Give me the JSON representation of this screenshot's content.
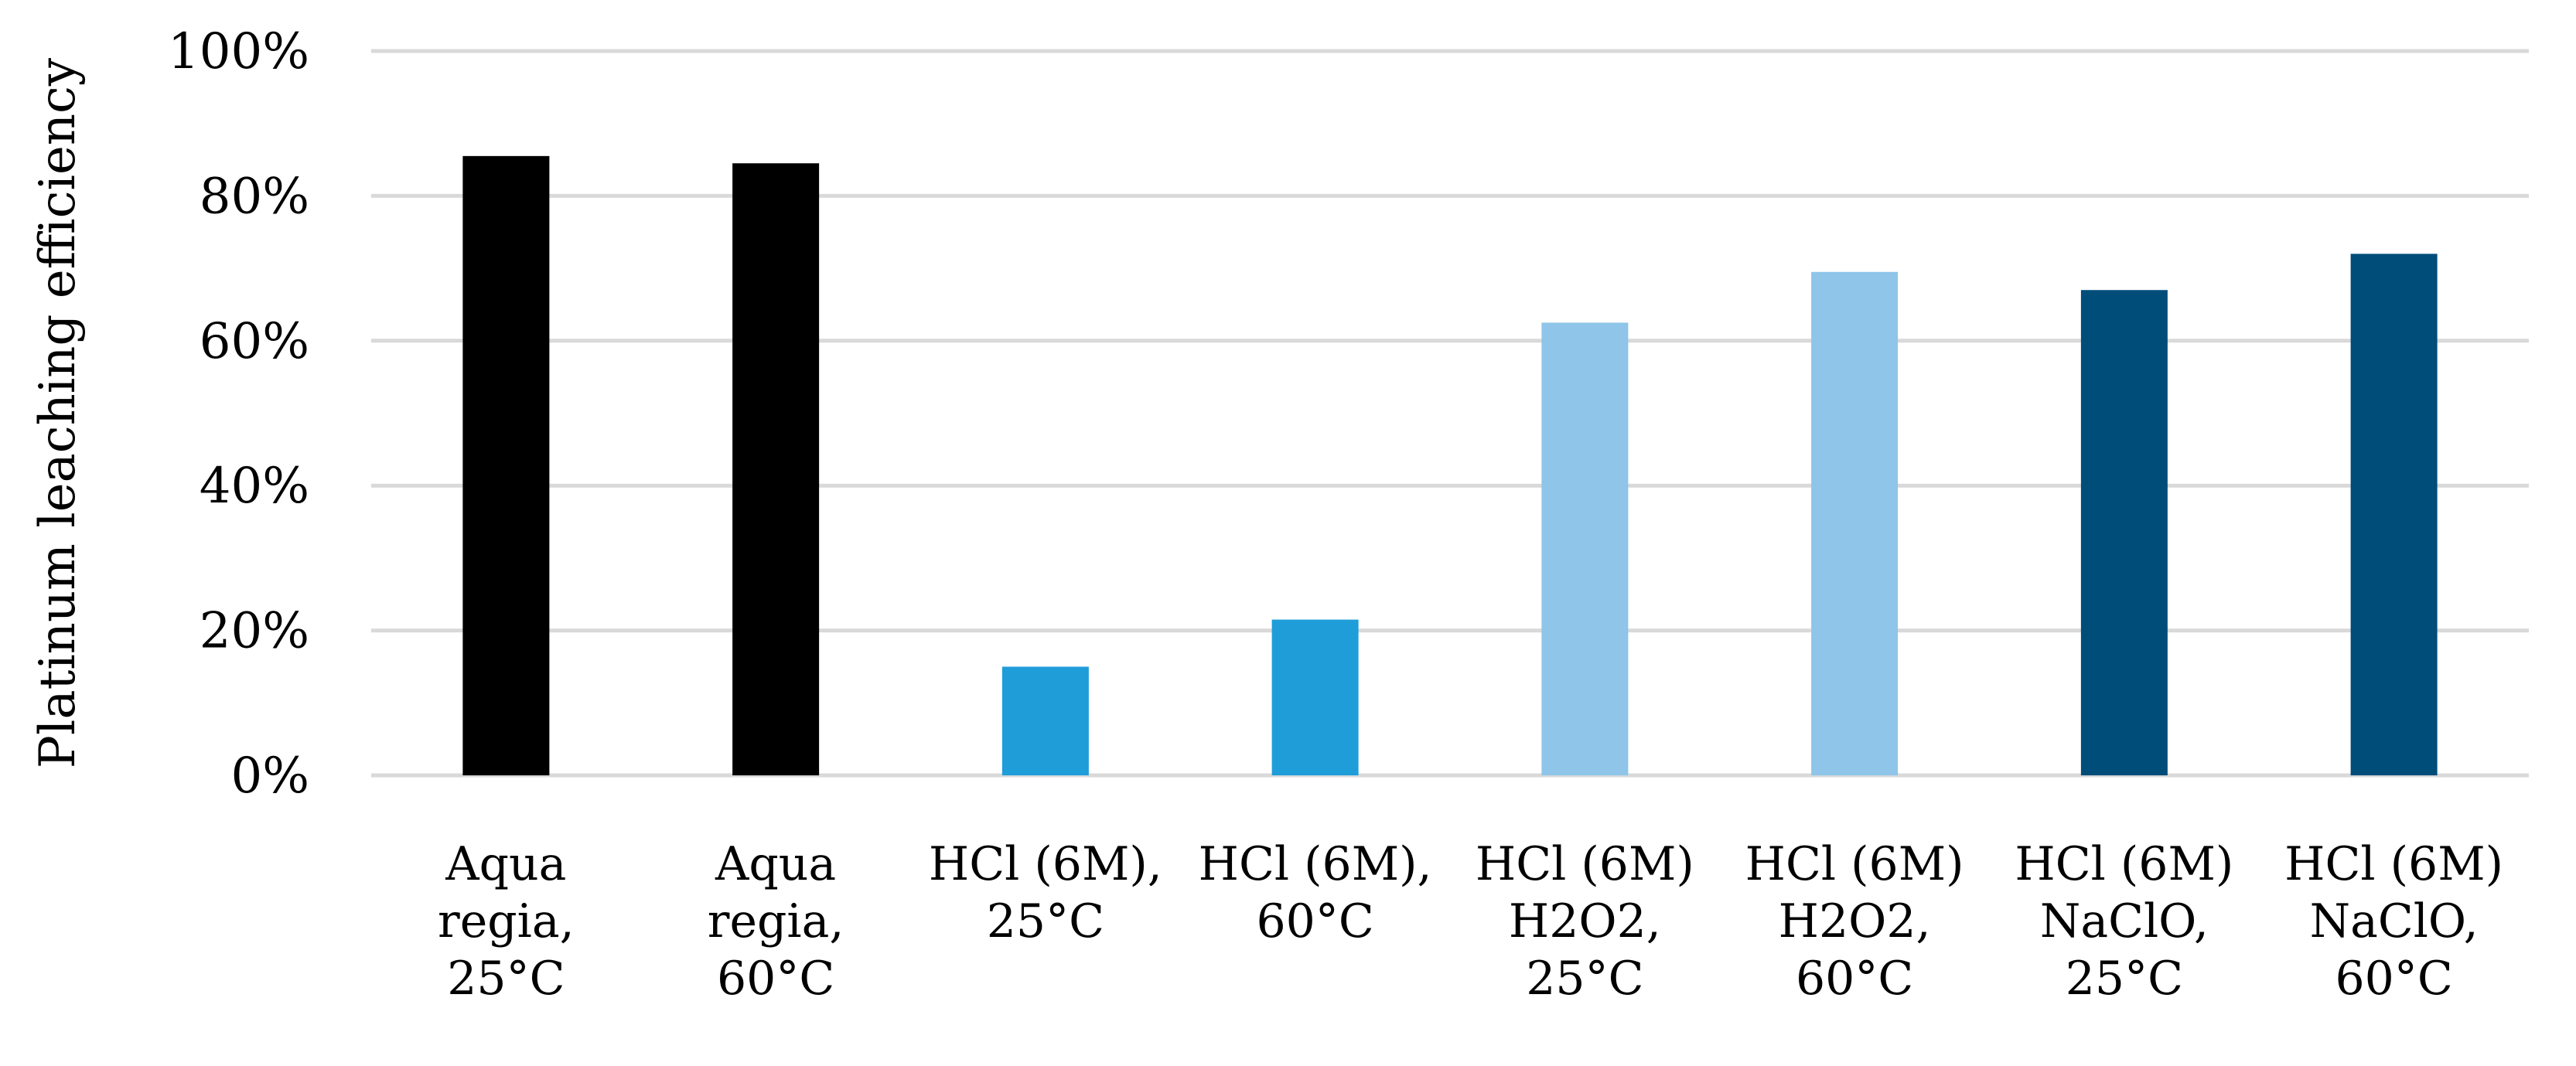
{
  "chart_data": {
    "type": "bar",
    "title": "",
    "xlabel": "",
    "ylabel": "Platinum leaching efficiency",
    "ylim": [
      0,
      100
    ],
    "y_ticks": [
      "0%",
      "20%",
      "40%",
      "60%",
      "80%",
      "100%"
    ],
    "grid": true,
    "legend": "none",
    "categories": [
      [
        "Aqua",
        "regia,",
        "25°C"
      ],
      [
        "Aqua",
        "regia,",
        "60°C"
      ],
      [
        "HCl (6M),",
        "25°C"
      ],
      [
        "HCl (6M),",
        "60°C"
      ],
      [
        "HCl (6M)",
        "H2O2,",
        "25°C"
      ],
      [
        "HCl (6M)",
        "H2O2,",
        "60°C"
      ],
      [
        "HCl (6M)",
        "NaClO,",
        "25°C"
      ],
      [
        "HCl (6M)",
        "NaClO,",
        "60°C"
      ]
    ],
    "values": [
      85.5,
      84.5,
      15,
      21.5,
      62.5,
      69.5,
      67,
      72
    ],
    "colors": [
      "#000000",
      "#000000",
      "#1f9dd9",
      "#1f9dd9",
      "#8ec5e8",
      "#8ec5e8",
      "#004d7a",
      "#004d7a"
    ]
  }
}
